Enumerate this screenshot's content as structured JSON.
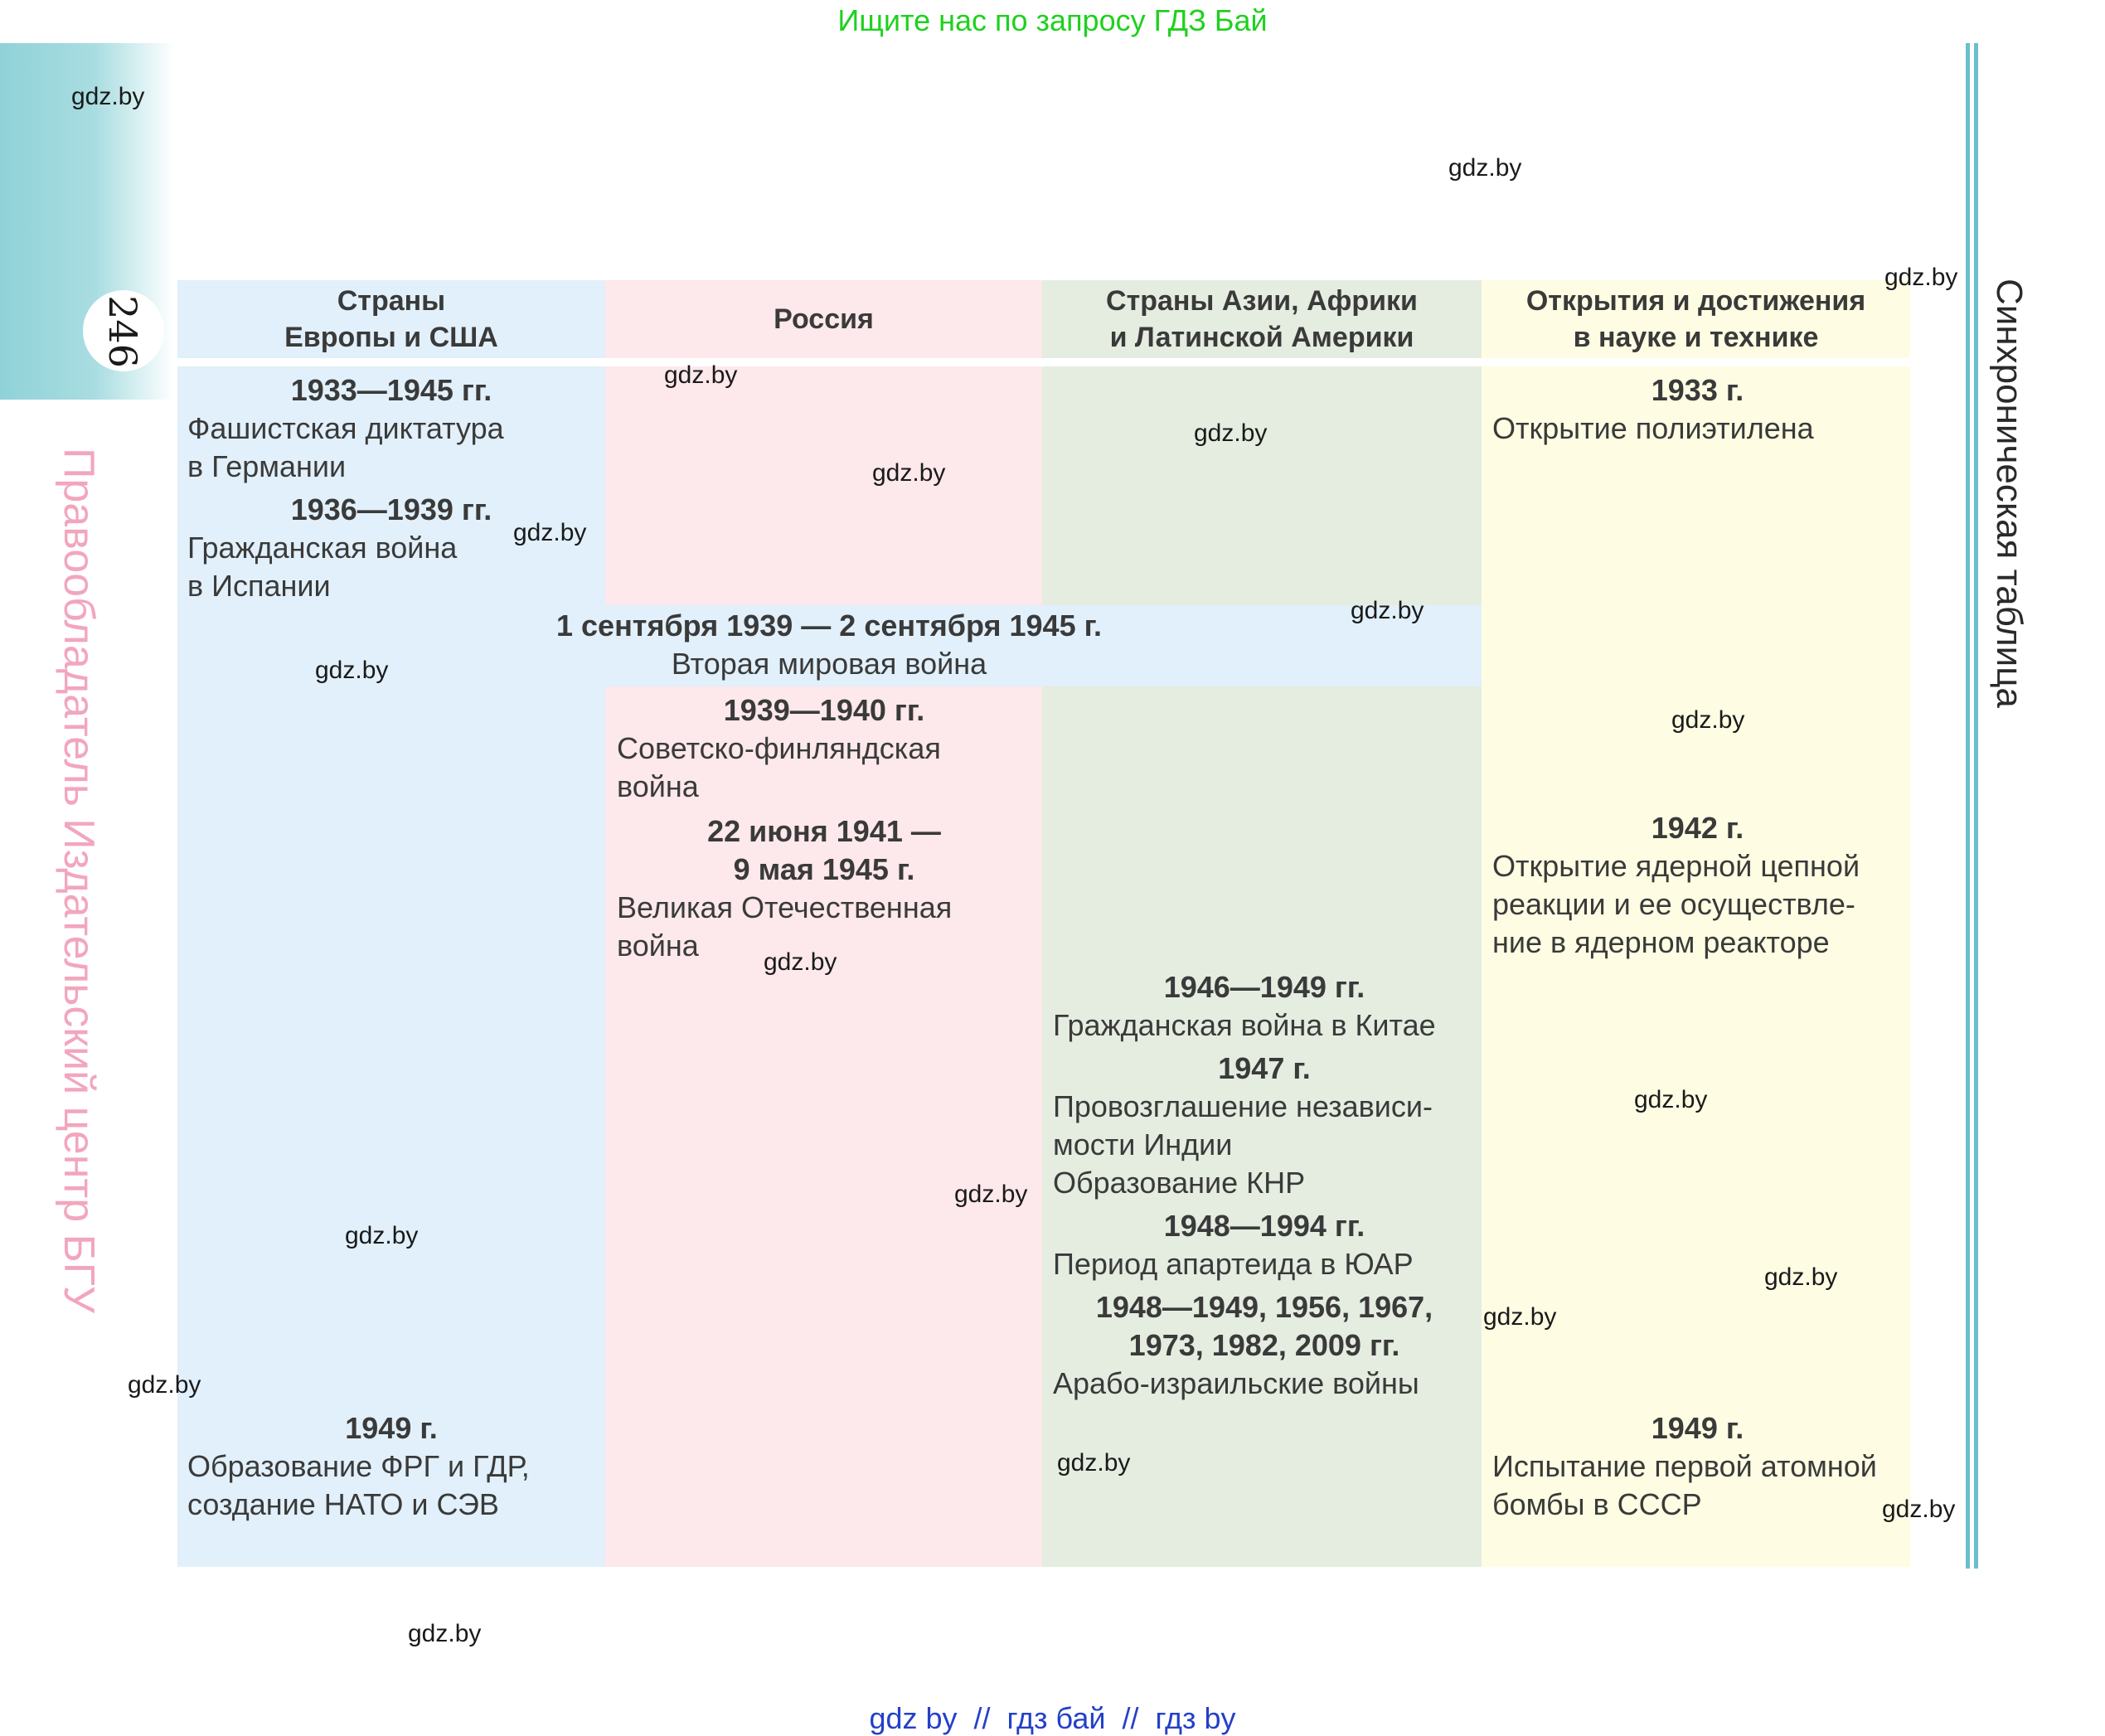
{
  "banner_top": "Ищите нас по запросу ГДЗ Бай",
  "footer_links": "gdz by  //  гдз бай  //  гдз by",
  "page_number": "246",
  "side_publisher": "Правообладатель Издательский центр БГУ",
  "side_title": "Синхроническая таблица",
  "watermark": "gdz.by",
  "colors": {
    "europe": "#e1f0fa",
    "russia": "#fde8eb",
    "asia": "#e4ede0",
    "science": "#fefde3",
    "accent": "#6bbfcc"
  },
  "headers": {
    "europe": "Страны\nЕвропы и США",
    "russia": "Россия",
    "asia": "Страны Азии, Африки\nи Латинской Америки",
    "science": "Открытия и достижения\nв науке и технике"
  },
  "europe": [
    {
      "date": "1933—1945 гг.",
      "text": "Фашистская диктатура\nв Германии"
    },
    {
      "date": "1936—1939 гг.",
      "text": "Гражданская война\nв Испании"
    },
    {
      "date": "1949 г.",
      "text": "Образование ФРГ и ГДР,\nсоздание НАТО и СЭВ"
    }
  ],
  "ww2": {
    "date": "1 сентября 1939 — 2 сентября 1945 г.",
    "text": "Вторая мировая война"
  },
  "russia": [
    {
      "date": "1939—1940 гг.",
      "text": "Советско-финляндская\nвойна"
    },
    {
      "date": "22 июня 1941 —\n9 мая 1945 г.",
      "text": "Великая Отечественная\nвойна"
    }
  ],
  "asia": [
    {
      "date": "1946—1949 гг.",
      "text": "Гражданская война в Китае"
    },
    {
      "date": "1947 г.",
      "text": "Провозглашение независи-\nмости Индии\nОбразование КНР"
    },
    {
      "date": "1948—1994 гг.",
      "text": "Период апартеида в ЮАР"
    },
    {
      "date": "1948—1949, 1956, 1967,\n1973, 1982, 2009 гг.",
      "text": "Арабо-израильские войны"
    }
  ],
  "science": [
    {
      "date": "1933 г.",
      "text": "Открытие полиэтилена"
    },
    {
      "date": "1942 г.",
      "text": "Открытие ядерной цепной\nреакции и ее осуществле-\nние в ядерном реакторе"
    },
    {
      "date": "1949 г.",
      "text": "Испытание первой атомной\nбомбы в СССР"
    }
  ]
}
